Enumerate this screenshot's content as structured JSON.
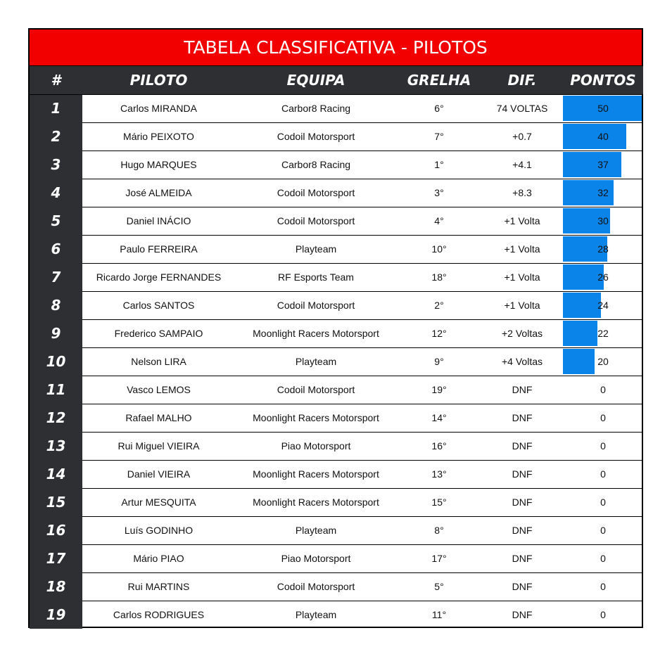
{
  "header": {
    "title": "TABELA CLASSIFICATIVA - PILOTOS"
  },
  "table": {
    "columns": [
      "#",
      "PILOTO",
      "EQUIPA",
      "GRELHA",
      "DIF.",
      "PONTOS"
    ],
    "rows": [
      [
        1,
        "Carlos MIRANDA",
        "Carbor8 Racing",
        "6°",
        "74 VOLTAS",
        50
      ],
      [
        2,
        "Mário PEIXOTO",
        "Codoil Motorsport",
        "7°",
        "+0.7",
        40
      ],
      [
        3,
        "Hugo MARQUES",
        "Carbor8 Racing",
        "1°",
        "+4.1",
        37
      ],
      [
        4,
        "José ALMEIDA",
        "Codoil Motorsport",
        "3°",
        "+8.3",
        32
      ],
      [
        5,
        "Daniel INÁCIO",
        "Codoil Motorsport",
        "4°",
        "+1 Volta",
        30
      ],
      [
        6,
        "Paulo FERREIRA",
        "Playteam",
        "10°",
        "+1 Volta",
        28
      ],
      [
        7,
        "Ricardo Jorge FERNANDES",
        "RF Esports Team",
        "18°",
        "+1 Volta",
        26
      ],
      [
        8,
        "Carlos SANTOS",
        "Codoil Motorsport",
        "2°",
        "+1 Volta",
        24
      ],
      [
        9,
        "Frederico SAMPAIO",
        "Moonlight Racers Motorsport",
        "12°",
        "+2 Voltas",
        22
      ],
      [
        10,
        "Nelson LIRA",
        "Playteam",
        "9°",
        "+4 Voltas",
        20
      ],
      [
        11,
        "Vasco LEMOS",
        "Codoil Motorsport",
        "19°",
        "DNF",
        0
      ],
      [
        12,
        "Rafael MALHO",
        "Moonlight Racers Motorsport",
        "14°",
        "DNF",
        0
      ],
      [
        13,
        "Rui Miguel VIEIRA",
        "Piao Motorsport",
        "16°",
        "DNF",
        0
      ],
      [
        14,
        "Daniel VIEIRA",
        "Moonlight Racers Motorsport",
        "13°",
        "DNF",
        0
      ],
      [
        15,
        "Artur MESQUITA",
        "Moonlight Racers Motorsport",
        "15°",
        "DNF",
        0
      ],
      [
        16,
        "Luís GODINHO",
        "Playteam",
        "8°",
        "DNF",
        0
      ],
      [
        17,
        "Mário PIAO",
        "Piao Motorsport",
        "17°",
        "DNF",
        0
      ],
      [
        18,
        "Rui MARTINS",
        "Codoil Motorsport",
        "5°",
        "DNF",
        0
      ],
      [
        19,
        "Carlos RODRIGUES",
        "Playteam",
        "11°",
        "DNF",
        0
      ]
    ]
  }
}
